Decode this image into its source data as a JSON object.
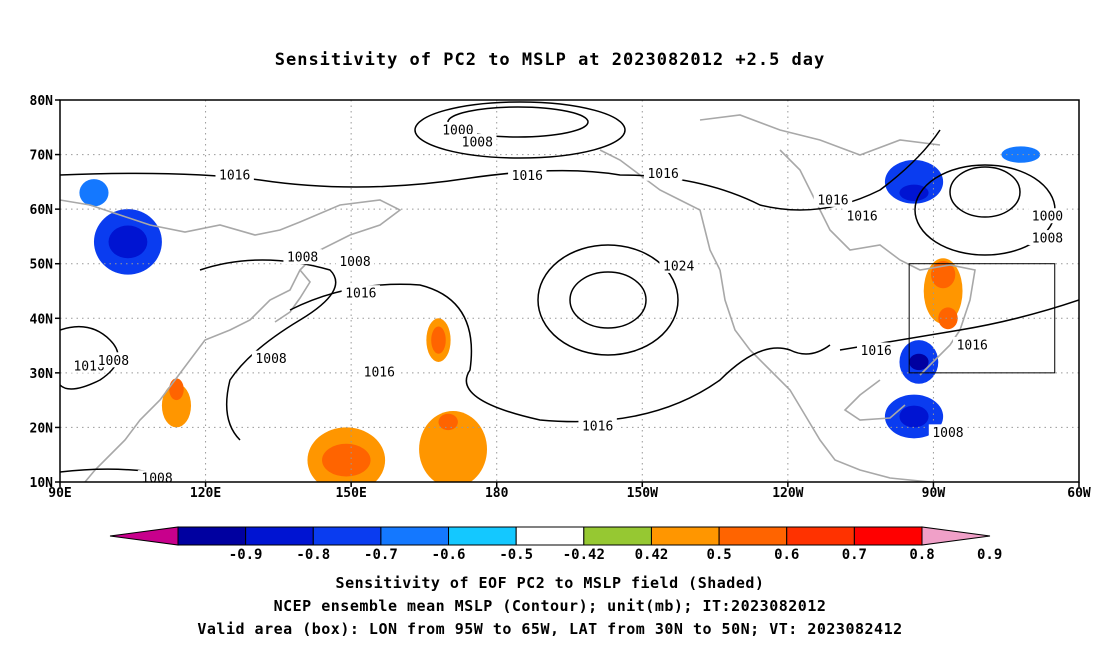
{
  "title": "Sensitivity of PC2 to MSLP at 2023082012 +2.5 day",
  "lat_labels": [
    "80N",
    "70N",
    "60N",
    "50N",
    "40N",
    "30N",
    "20N",
    "10N"
  ],
  "lon_labels": [
    "90E",
    "120E",
    "150E",
    "180",
    "150W",
    "120W",
    "90W",
    "60W"
  ],
  "contour_labels": [
    {
      "text": "1000",
      "lon": 172,
      "lat": 74.5
    },
    {
      "text": "1008",
      "lon": 176,
      "lat": 72.3
    },
    {
      "text": "1016",
      "lon": 126,
      "lat": 66.3
    },
    {
      "text": "1016",
      "lon": -173.7,
      "lat": 66.2
    },
    {
      "text": "1016",
      "lon": -145.7,
      "lat": 66.5
    },
    {
      "text": "1016",
      "lon": -110.7,
      "lat": 61.7
    },
    {
      "text": "1016",
      "lon": -104.7,
      "lat": 58.7
    },
    {
      "text": "1000",
      "lon": -66.5,
      "lat": 58.7
    },
    {
      "text": "1008",
      "lon": -66.5,
      "lat": 54.7
    },
    {
      "text": "1008",
      "lon": 140,
      "lat": 51.2
    },
    {
      "text": "1008",
      "lon": 150.8,
      "lat": 50.4
    },
    {
      "text": "1016",
      "lon": 152,
      "lat": 44.6
    },
    {
      "text": "1024",
      "lon": -142.5,
      "lat": 49.6
    },
    {
      "text": "1016",
      "lon": 96,
      "lat": 31.3
    },
    {
      "text": "1008",
      "lon": 101,
      "lat": 32.3
    },
    {
      "text": "1008",
      "lon": 133.5,
      "lat": 32.6
    },
    {
      "text": "1016",
      "lon": 155.8,
      "lat": 30.2
    },
    {
      "text": "1016",
      "lon": -101.8,
      "lat": 34.1
    },
    {
      "text": "1016",
      "lon": -82,
      "lat": 35.1
    },
    {
      "text": "1016",
      "lon": -159.2,
      "lat": 20.3
    },
    {
      "text": "1008",
      "lon": -87,
      "lat": 19.1
    },
    {
      "text": "1008",
      "lon": 110,
      "lat": 10.7
    }
  ],
  "valid_box": {
    "lon_min": -95,
    "lon_max": -65,
    "lat_min": 30,
    "lat_max": 50
  },
  "colorbar": {
    "labels": [
      "-0.9",
      "-0.8",
      "-0.7",
      "-0.6",
      "-0.5",
      "-0.42",
      "0.42",
      "0.5",
      "0.6",
      "0.7",
      "0.8",
      "0.9"
    ],
    "colors": [
      "#c8008c",
      "#0000a0",
      "#0014d2",
      "#0a3cf0",
      "#1478ff",
      "#14c8ff",
      "#ffffff",
      "#96c832",
      "#ff9600",
      "#ff6400",
      "#ff3200",
      "#ff0000",
      "#f0a0c8"
    ]
  },
  "shaded_blobs": [
    {
      "lon": 104,
      "lat": 54,
      "rx": 7,
      "ry": 6,
      "level": "-0.6"
    },
    {
      "lon": 104,
      "lat": 54,
      "rx": 4,
      "ry": 3,
      "level": "-0.7"
    },
    {
      "lon": 97,
      "lat": 63,
      "rx": 3,
      "ry": 2.5,
      "level": "-0.5"
    },
    {
      "lon": -94,
      "lat": 65,
      "rx": 6,
      "ry": 4,
      "level": "-0.6"
    },
    {
      "lon": -94,
      "lat": 63,
      "rx": 3,
      "ry": 1.5,
      "level": "-0.7"
    },
    {
      "lon": -72,
      "lat": 70,
      "rx": 4,
      "ry": 1.5,
      "level": "-0.5"
    },
    {
      "lon": -93,
      "lat": 32,
      "rx": 4,
      "ry": 4,
      "level": "-0.6"
    },
    {
      "lon": -93,
      "lat": 32,
      "rx": 2,
      "ry": 1.5,
      "level": "-0.8"
    },
    {
      "lon": -94,
      "lat": 22,
      "rx": 6,
      "ry": 4,
      "level": "-0.6"
    },
    {
      "lon": -94,
      "lat": 22,
      "rx": 3,
      "ry": 2,
      "level": "-0.7"
    },
    {
      "lon": -88,
      "lat": 45,
      "rx": 4,
      "ry": 6,
      "level": "0.5"
    },
    {
      "lon": -88,
      "lat": 48,
      "rx": 2.5,
      "ry": 2.5,
      "level": "0.6"
    },
    {
      "lon": -87,
      "lat": 40,
      "rx": 2,
      "ry": 2,
      "level": "0.6"
    },
    {
      "lon": 168,
      "lat": 36,
      "rx": 2.5,
      "ry": 4,
      "level": "0.5"
    },
    {
      "lon": 168,
      "lat": 36,
      "rx": 1.5,
      "ry": 2.5,
      "level": "0.6"
    },
    {
      "lon": 149,
      "lat": 14,
      "rx": 8,
      "ry": 6,
      "level": "0.5"
    },
    {
      "lon": 149,
      "lat": 14,
      "rx": 5,
      "ry": 3,
      "level": "0.6"
    },
    {
      "lon": 171,
      "lat": 16,
      "rx": 7,
      "ry": 7,
      "level": "0.5"
    },
    {
      "lon": 170,
      "lat": 21,
      "rx": 2,
      "ry": 1.5,
      "level": "0.6"
    },
    {
      "lon": 114,
      "lat": 24,
      "rx": 3,
      "ry": 4,
      "level": "0.5"
    },
    {
      "lon": 114,
      "lat": 27,
      "rx": 1.5,
      "ry": 2,
      "level": "0.6"
    }
  ],
  "caption_1": "Sensitivity of EOF PC2 to MSLP field (Shaded)",
  "caption_2": "NCEP ensemble mean MSLP (Contour); unit(mb); IT:2023082012",
  "caption_3": "Valid area (box): LON from 95W to 65W, LAT from 30N to 50N; VT: 2023082412"
}
